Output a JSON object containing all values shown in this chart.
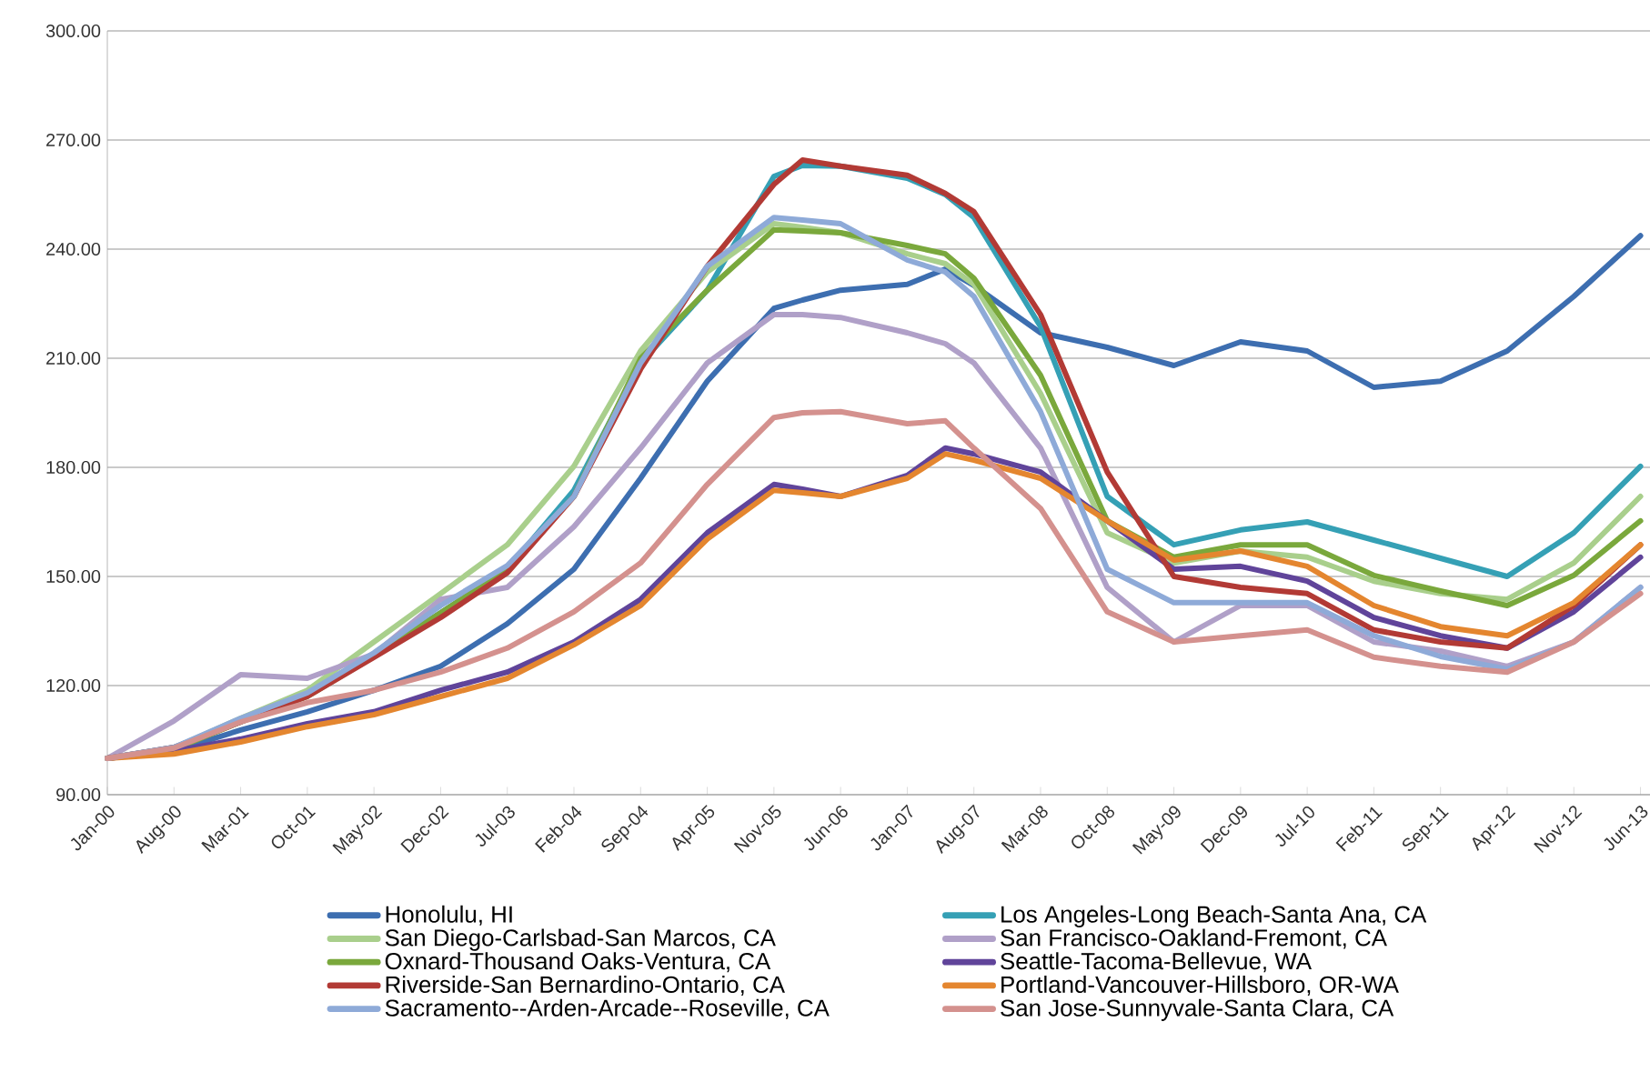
{
  "chart_data": {
    "type": "line",
    "x": [
      "2000-01",
      "2000-08",
      "2001-03",
      "2001-10",
      "2002-05",
      "2002-12",
      "2003-07",
      "2004-02",
      "2004-09",
      "2005-04",
      "2005-11",
      "2006-02",
      "2006-06",
      "2007-01",
      "2007-05",
      "2007-08",
      "2008-03",
      "2008-10",
      "2009-05",
      "2009-12",
      "2010-07",
      "2011-02",
      "2011-09",
      "2012-04",
      "2012-11",
      "2013-06"
    ],
    "series": [
      {
        "name": "Honolulu, HI",
        "color": "#3d6eb0",
        "values": [
          100,
          102,
          107.8,
          112.8,
          118.7,
          125.3,
          137,
          152,
          177,
          203.7,
          223.7,
          226,
          228.7,
          230.3,
          234.5,
          230,
          217,
          213,
          208,
          214.5,
          212,
          202,
          203.7,
          212,
          227,
          243.7
        ]
      },
      {
        "name": "Los Angeles-Long Beach-Santa Ana, CA",
        "color": "#35a0b5",
        "values": [
          100,
          103,
          110,
          118,
          128.7,
          140,
          152,
          173.7,
          208.7,
          228.7,
          260,
          263,
          262.8,
          259.5,
          255,
          248.7,
          218.7,
          172,
          158.7,
          162.8,
          165,
          160,
          155,
          150,
          162,
          180.3
        ]
      },
      {
        "name": "San Diego-Carlsbad-San Marcos, CA",
        "color": "#a9cf8c",
        "values": [
          100,
          102.8,
          111,
          118.7,
          132,
          145.3,
          158.7,
          180.3,
          212,
          233.7,
          247,
          246,
          244.5,
          238.7,
          236,
          230.3,
          200.3,
          162,
          153.7,
          157,
          155.3,
          148.7,
          145.3,
          143.7,
          153.7,
          172
        ]
      },
      {
        "name": "San Francisco-Oakland-Fremont, CA",
        "color": "#b0a0c8",
        "values": [
          100,
          110.3,
          123,
          122,
          128.7,
          143.7,
          147,
          163.7,
          185.3,
          208.7,
          222,
          222,
          221.2,
          217,
          214,
          208.7,
          185.3,
          147,
          132,
          142,
          142,
          132,
          129.5,
          125.3,
          132,
          147
        ]
      },
      {
        "name": "Oxnard-Thousand Oaks-Ventura, CA",
        "color": "#7aa83c",
        "values": [
          100,
          102.5,
          110,
          117,
          128,
          140,
          152,
          172,
          210,
          228.7,
          245.3,
          245,
          244.5,
          241,
          238.7,
          232,
          205.3,
          165.3,
          155.3,
          158.7,
          158.7,
          150.3,
          146,
          142,
          150.3,
          165.3
        ]
      },
      {
        "name": "Seattle-Tacoma-Bellevue, WA",
        "color": "#60449a",
        "values": [
          100,
          102,
          105.3,
          109.5,
          112.8,
          118.7,
          123.7,
          132,
          143.7,
          162,
          175.3,
          174,
          172,
          177.8,
          185.3,
          183.7,
          178.7,
          165.3,
          152,
          152.8,
          148.7,
          138.7,
          133.7,
          130.3,
          140.3,
          155.3
        ]
      },
      {
        "name": "Riverside-San Bernardino-Ontario, CA",
        "color": "#b23a35",
        "values": [
          100,
          103,
          110,
          117,
          127.8,
          138.7,
          151,
          172,
          207,
          235.3,
          257.8,
          264.5,
          262.8,
          260.3,
          255.3,
          250.3,
          222,
          178.7,
          150,
          147,
          145.3,
          135.3,
          132,
          130.3,
          142,
          158.7
        ]
      },
      {
        "name": "Portland-Vancouver-Hillsboro, OR-WA",
        "color": "#e4862f",
        "values": [
          100,
          101.2,
          104.5,
          108.7,
          112,
          117,
          122,
          131.2,
          142,
          160.3,
          173.7,
          173,
          172,
          177,
          183.7,
          182,
          177,
          165.3,
          154.5,
          157,
          152.8,
          142,
          136.2,
          133.7,
          142.8,
          158.7
        ]
      },
      {
        "name": "Sacramento--Arden-Arcade--Roseville, CA",
        "color": "#8eaad8",
        "values": [
          100,
          103,
          111,
          118,
          129,
          142,
          153,
          172,
          208.7,
          235.3,
          248.7,
          248,
          247,
          237,
          233.7,
          227,
          195.3,
          152,
          142.8,
          142.8,
          142.8,
          133.7,
          128,
          124.5,
          132,
          147
        ]
      },
      {
        "name": "San Jose-Sunnyvale-Santa Clara, CA",
        "color": "#d4918e",
        "values": [
          100,
          102.8,
          110,
          115.3,
          118.7,
          123.7,
          130.3,
          140.3,
          153.7,
          175.3,
          193.7,
          195,
          195.3,
          192,
          192.8,
          185.3,
          168.7,
          140.3,
          132,
          133.7,
          135.3,
          127.8,
          125.3,
          123.7,
          132,
          145.3
        ]
      }
    ],
    "xlim": [
      "2000-01",
      "2013-07"
    ],
    "xticks": [
      {
        "value": "2000-01",
        "label": "Jan-00"
      },
      {
        "value": "2000-08",
        "label": "Aug-00"
      },
      {
        "value": "2001-03",
        "label": "Mar-01"
      },
      {
        "value": "2001-10",
        "label": "Oct-01"
      },
      {
        "value": "2002-05",
        "label": "May-02"
      },
      {
        "value": "2002-12",
        "label": "Dec-02"
      },
      {
        "value": "2003-07",
        "label": "Jul-03"
      },
      {
        "value": "2004-02",
        "label": "Feb-04"
      },
      {
        "value": "2004-09",
        "label": "Sep-04"
      },
      {
        "value": "2005-04",
        "label": "Apr-05"
      },
      {
        "value": "2005-11",
        "label": "Nov-05"
      },
      {
        "value": "2006-06",
        "label": "Jun-06"
      },
      {
        "value": "2007-01",
        "label": "Jan-07"
      },
      {
        "value": "2007-08",
        "label": "Aug-07"
      },
      {
        "value": "2008-03",
        "label": "Mar-08"
      },
      {
        "value": "2008-10",
        "label": "Oct-08"
      },
      {
        "value": "2009-05",
        "label": "May-09"
      },
      {
        "value": "2009-12",
        "label": "Dec-09"
      },
      {
        "value": "2010-07",
        "label": "Jul-10"
      },
      {
        "value": "2011-02",
        "label": "Feb-11"
      },
      {
        "value": "2011-09",
        "label": "Sep-11"
      },
      {
        "value": "2012-04",
        "label": "Apr-12"
      },
      {
        "value": "2012-11",
        "label": "Nov-12"
      },
      {
        "value": "2013-06",
        "label": "Jun-13"
      }
    ],
    "ylim": [
      90,
      300
    ],
    "yticks": [
      {
        "value": 90,
        "label": "90.00"
      },
      {
        "value": 120,
        "label": "120.00"
      },
      {
        "value": 150,
        "label": "150.00"
      },
      {
        "value": 180,
        "label": "180.00"
      },
      {
        "value": 210,
        "label": "210.00"
      },
      {
        "value": 240,
        "label": "240.00"
      },
      {
        "value": 270,
        "label": "270.00"
      },
      {
        "value": 300,
        "label": "300.00"
      }
    ],
    "grid": "y",
    "legend": "bottom"
  }
}
